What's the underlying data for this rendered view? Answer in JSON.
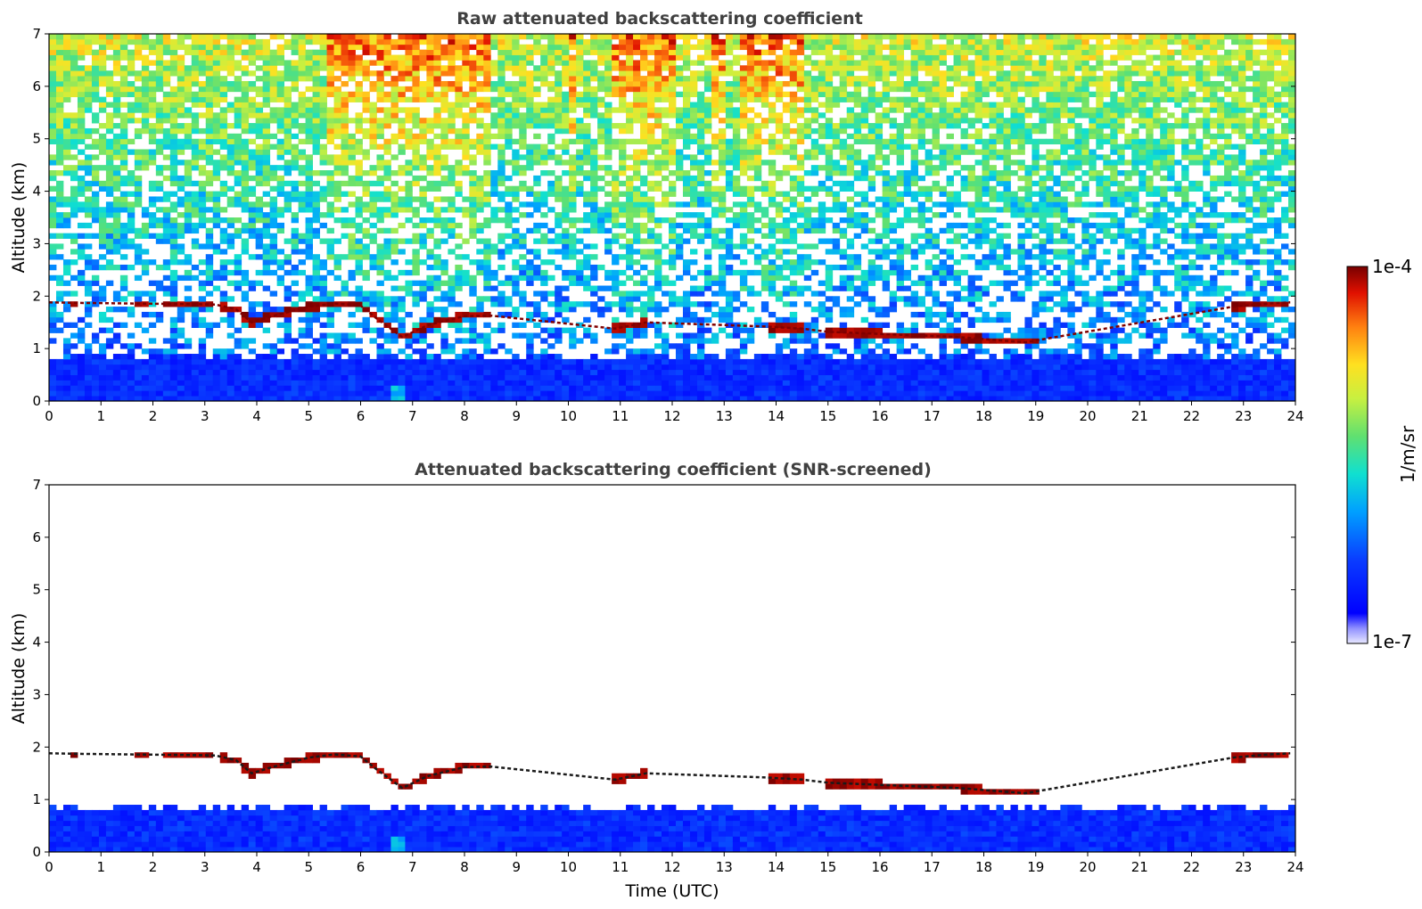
{
  "chart_data": [
    {
      "type": "heatmap",
      "title": "Raw attenuated backscattering coefficient",
      "xlabel": "",
      "ylabel": "Altitude (km)",
      "xlim": [
        0,
        24
      ],
      "ylim": [
        0,
        7
      ],
      "xticks": [
        "0",
        "1",
        "2",
        "3",
        "4",
        "5",
        "6",
        "7",
        "8",
        "9",
        "10",
        "11",
        "12",
        "13",
        "14",
        "15",
        "16",
        "17",
        "18",
        "19",
        "20",
        "21",
        "22",
        "23",
        "24"
      ],
      "yticks": [
        "0",
        "1",
        "2",
        "3",
        "4",
        "5",
        "6",
        "7"
      ],
      "screened": false,
      "cloud_layer": {
        "time": [
          0.0,
          0.6,
          1.5,
          2.5,
          3.2,
          3.6,
          3.9,
          4.3,
          5.0,
          5.5,
          6.0,
          6.3,
          6.8,
          7.3,
          8.0,
          8.5,
          10.9,
          11.5,
          13.8,
          14.5,
          15.0,
          16.0,
          17.0,
          17.5,
          18.0,
          18.8,
          22.8,
          23.5,
          23.9
        ],
        "altitude_km": [
          1.88,
          1.87,
          1.86,
          1.85,
          1.84,
          1.75,
          1.5,
          1.62,
          1.8,
          1.86,
          1.82,
          1.58,
          1.22,
          1.45,
          1.62,
          1.63,
          1.38,
          1.5,
          1.42,
          1.38,
          1.32,
          1.28,
          1.24,
          1.22,
          1.18,
          1.12,
          1.8,
          1.86,
          1.88
        ]
      },
      "boundary_layer_top_km": 0.85
    },
    {
      "type": "heatmap",
      "title": "Attenuated backscattering coefficient (SNR-screened)",
      "xlabel": "Time (UTC)",
      "ylabel": "Altitude (km)",
      "xlim": [
        0,
        24
      ],
      "ylim": [
        0,
        7
      ],
      "xticks": [
        "0",
        "1",
        "2",
        "3",
        "4",
        "5",
        "6",
        "7",
        "8",
        "9",
        "10",
        "11",
        "12",
        "13",
        "14",
        "15",
        "16",
        "17",
        "18",
        "19",
        "20",
        "21",
        "22",
        "23",
        "24"
      ],
      "yticks": [
        "0",
        "1",
        "2",
        "3",
        "4",
        "5",
        "6",
        "7"
      ],
      "screened": true,
      "cloud_layer": {
        "time": [
          0.0,
          0.6,
          1.5,
          2.5,
          3.2,
          3.6,
          3.9,
          4.3,
          5.0,
          5.5,
          6.0,
          6.3,
          6.8,
          7.3,
          8.0,
          8.5,
          10.9,
          11.5,
          13.8,
          14.5,
          15.0,
          16.0,
          17.0,
          17.5,
          18.0,
          18.8,
          22.8,
          23.5,
          23.9
        ],
        "altitude_km": [
          1.88,
          1.87,
          1.86,
          1.85,
          1.84,
          1.75,
          1.5,
          1.62,
          1.8,
          1.86,
          1.82,
          1.58,
          1.22,
          1.45,
          1.62,
          1.63,
          1.38,
          1.5,
          1.42,
          1.38,
          1.32,
          1.28,
          1.24,
          1.22,
          1.18,
          1.12,
          1.8,
          1.86,
          1.88
        ]
      },
      "boundary_layer_top_km": 0.85
    }
  ],
  "colorbar": {
    "label": "1/m/sr",
    "max_label": "1e-4",
    "min_label": "1e-7",
    "scale": "log"
  },
  "colors": {
    "low": "#0a1eff",
    "mid": "#22c8e0",
    "high": "#fff03c",
    "top": "#800000",
    "title": "#404040"
  }
}
